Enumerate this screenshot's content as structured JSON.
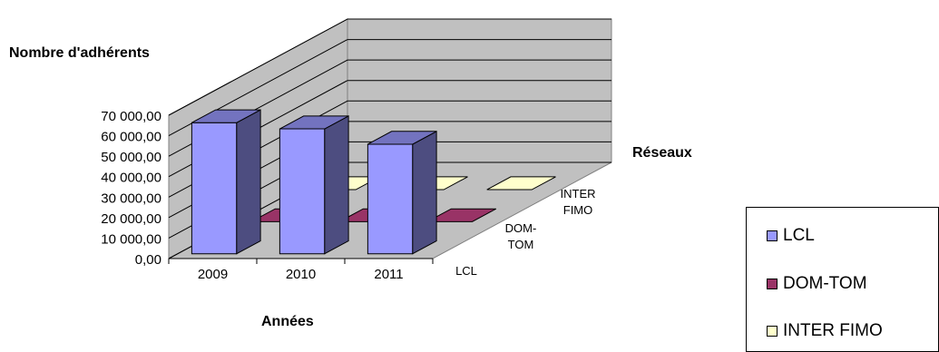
{
  "chart_data": {
    "type": "bar",
    "subtype": "3d-clustered-column",
    "title": "",
    "ylabel": "Nombre d'adhérents",
    "xlabel": "Années",
    "zlabel": "Réseaux",
    "categories": [
      "2009",
      "2010",
      "2011"
    ],
    "y_ticks": [
      "0,00",
      "10 000,00",
      "20 000,00",
      "30 000,00",
      "40 000,00",
      "50 000,00",
      "60 000,00",
      "70 000,00"
    ],
    "ylim": [
      0,
      70000
    ],
    "z_ticks": [
      "LCL",
      "DOM-TOM",
      "INTER FIMO"
    ],
    "series": [
      {
        "name": "LCL",
        "color": "#9999FF",
        "values": [
          64000,
          61000,
          53500
        ]
      },
      {
        "name": "DOM-TOM",
        "color": "#993366",
        "values": [
          0,
          0,
          0
        ]
      },
      {
        "name": "INTER FIMO",
        "color": "#FFFFCC",
        "values": [
          0,
          0,
          0
        ]
      }
    ],
    "legend_placement": "bottom-right",
    "grid": true
  }
}
